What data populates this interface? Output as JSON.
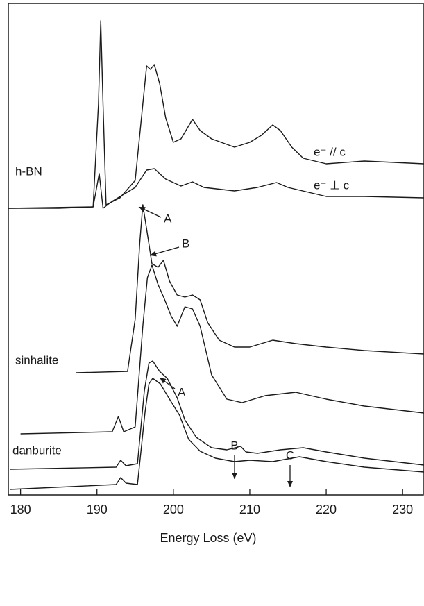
{
  "chart_data": {
    "type": "line",
    "x_label": "Energy Loss (eV)",
    "xlim": [
      178.4,
      232.8
    ],
    "xticks": [
      180,
      190,
      200,
      210,
      220,
      230
    ],
    "ylim": [
      0,
      708
    ],
    "annotations": [
      "h-BN",
      "e⁻ // c",
      "e⁻ ⊥ c",
      "A",
      "B",
      "sinhalite",
      "A",
      "B",
      "C",
      "danburite"
    ],
    "series": [
      {
        "color": "#1a1a1a",
        "x": [
          178.4,
          185,
          189.5,
          190.2,
          190.5,
          190.8,
          191.2,
          193,
          195,
          196,
          196.5,
          197,
          197.5,
          198.2,
          199,
          200,
          201,
          202.5,
          203.5,
          205,
          208,
          210,
          211.5,
          213,
          214,
          215.5,
          217,
          220,
          225,
          232.8
        ],
        "values": [
          413,
          413,
          415,
          563,
          683,
          563,
          418,
          428,
          453,
          563,
          618,
          613,
          620,
          593,
          543,
          508,
          513,
          541,
          525,
          513,
          501,
          508,
          518,
          533,
          525,
          501,
          485,
          477,
          481,
          477
        ]
      },
      {
        "color": "#1a1a1a",
        "x": [
          178.4,
          189.5,
          190.3,
          190.8,
          192,
          195,
          196.5,
          197.5,
          199,
          201,
          202.5,
          204,
          208,
          211,
          213.5,
          215,
          220,
          225,
          232.8
        ],
        "values": [
          413,
          415,
          463,
          413,
          423,
          443,
          468,
          470,
          455,
          445,
          451,
          443,
          438,
          443,
          450,
          443,
          430,
          430,
          428
        ]
      },
      {
        "color": "#1a1a1a",
        "x": [
          187.3,
          194,
          195,
          195.6,
          196,
          196.5,
          197.2,
          198,
          198.7,
          199.5,
          200.5,
          201.5,
          202.5,
          203.5,
          204.5,
          206,
          208,
          210,
          213,
          216,
          220,
          225,
          232.8
        ],
        "values": [
          176,
          178,
          253,
          363,
          418,
          383,
          333,
          328,
          338,
          308,
          288,
          285,
          288,
          281,
          248,
          223,
          213,
          213,
          223,
          218,
          213,
          208,
          203
        ]
      },
      {
        "color": "#1a1a1a",
        "x": [
          180,
          192,
          192.8,
          193.5,
          195,
          196,
          196.6,
          197.2,
          198,
          198.8,
          199.7,
          200.5,
          201.5,
          202.5,
          203.5,
          205,
          207,
          209,
          212,
          216,
          220,
          225,
          232.8
        ],
        "values": [
          88,
          91,
          113,
          91,
          98,
          243,
          313,
          331,
          303,
          283,
          258,
          243,
          271,
          268,
          243,
          173,
          138,
          133,
          143,
          148,
          138,
          128,
          118
        ]
      },
      {
        "color": "#1a1a1a",
        "x": [
          178.6,
          192.5,
          193.1,
          193.8,
          195.3,
          196.2,
          196.8,
          197.3,
          198.2,
          199.2,
          200.5,
          201.5,
          203,
          205,
          207,
          208.8,
          209.5,
          211,
          214,
          217,
          220,
          225,
          232.8
        ],
        "values": [
          37,
          40,
          50,
          42,
          45,
          150,
          190,
          193,
          178,
          168,
          140,
          108,
          83,
          68,
          65,
          70,
          62,
          60,
          65,
          68,
          62,
          53,
          43
        ]
      },
      {
        "color": "#1a1a1a",
        "x": [
          178.6,
          192.5,
          193.1,
          193.8,
          195.3,
          196.3,
          196.8,
          197.3,
          198.3,
          199.5,
          200.8,
          202,
          203.5,
          205.5,
          208,
          210,
          213,
          216.5,
          220,
          225,
          232.8
        ],
        "values": [
          8,
          15,
          25,
          17,
          15,
          120,
          160,
          168,
          160,
          138,
          115,
          80,
          63,
          53,
          48,
          50,
          48,
          55,
          48,
          40,
          33
        ]
      }
    ]
  }
}
